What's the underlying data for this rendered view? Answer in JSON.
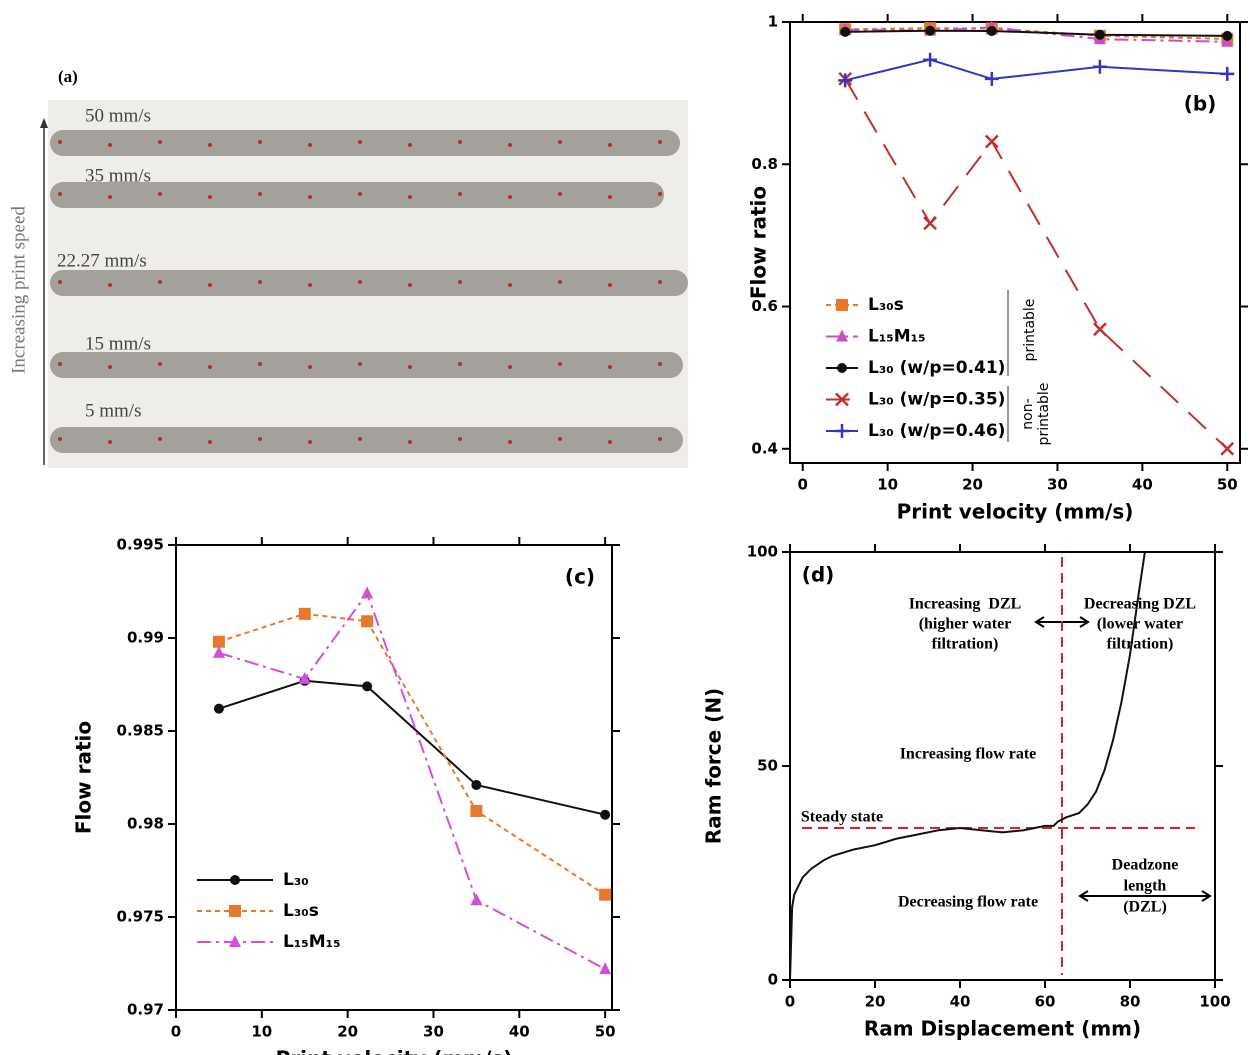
{
  "photo": {
    "panel_label": "(a)",
    "axis_label": "Increasing print speed",
    "speeds": [
      "50 mm/s",
      "35 mm/s",
      "22.27 mm/s",
      "15 mm/s",
      "5 mm/s"
    ]
  },
  "chart_data": [
    {
      "type": "line",
      "panel_label": "(b)",
      "xlabel": "Print velocity (mm/s)",
      "ylabel": "Flow ratio",
      "x": [
        5,
        15,
        22.27,
        35,
        50
      ],
      "xlim": [
        -1.5,
        51.5
      ],
      "xticks": [
        0,
        10,
        20,
        30,
        40,
        50
      ],
      "ylim": [
        0.38,
        1.0
      ],
      "yticks": [
        0.4,
        0.6,
        0.8,
        1
      ],
      "legend": "lower left",
      "series": [
        {
          "name": "L₃₀s",
          "color": "#e8792a",
          "linestyle": "dotted",
          "marker": "square",
          "values": [
            0.9898,
            0.9913,
            0.9909,
            0.9807,
            0.9762
          ]
        },
        {
          "name": "L₁₅M₁₅",
          "color": "#c84fc8",
          "linestyle": "dashdot",
          "marker": "triangle",
          "values": [
            0.9892,
            0.9878,
            0.9924,
            0.9759,
            0.9722
          ]
        },
        {
          "name": "L₃₀ (w/p=0.41)",
          "color": "#111111",
          "linestyle": "solid",
          "marker": "circle",
          "values": [
            0.9862,
            0.9877,
            0.9874,
            0.9821,
            0.9805
          ]
        },
        {
          "name": "L₃₀ (w/p=0.35)",
          "color": "#c03030",
          "linestyle": "longdash",
          "marker": "x",
          "values": [
            0.92,
            0.717,
            0.832,
            0.568,
            0.4
          ]
        },
        {
          "name": "L₃₀ (w/p=0.46)",
          "color": "#3535c0",
          "linestyle": "solid",
          "marker": "plus",
          "values": [
            0.918,
            0.947,
            0.92,
            0.937,
            0.927
          ]
        }
      ],
      "annotations": [
        {
          "lines": [
            "printable"
          ]
        },
        {
          "lines": [
            "non-",
            "printable"
          ]
        }
      ]
    },
    {
      "type": "line",
      "panel_label": "(c)",
      "xlabel": "Print velocity (mm/s)",
      "ylabel": "Flow ratio",
      "x": [
        5,
        15,
        22.27,
        35,
        50
      ],
      "xlim": [
        0,
        50.8
      ],
      "xticks": [
        0,
        10,
        20,
        30,
        40,
        50
      ],
      "ylim": [
        0.97,
        0.995
      ],
      "yticks": [
        0.97,
        0.975,
        0.98,
        0.985,
        0.99,
        0.995
      ],
      "legend": "lower left",
      "series": [
        {
          "name": "L₃₀",
          "color": "#111111",
          "linestyle": "solid",
          "marker": "circle",
          "values": [
            0.9862,
            0.9877,
            0.9874,
            0.9821,
            0.9805
          ]
        },
        {
          "name": "L₃₀s",
          "color": "#e8792a",
          "linestyle": "dotted",
          "marker": "square",
          "values": [
            0.9898,
            0.9913,
            0.9909,
            0.9807,
            0.9762
          ]
        },
        {
          "name": "L₁₅M₁₅",
          "color": "#d24fd8",
          "linestyle": "dashdot",
          "marker": "triangle",
          "values": [
            0.9892,
            0.9878,
            0.9924,
            0.9759,
            0.9722
          ]
        }
      ]
    },
    {
      "type": "line",
      "panel_label": "(d)",
      "xlabel": "Ram Displacement (mm)",
      "ylabel": "Ram force (N)",
      "x": [
        0,
        0.3,
        0.5,
        1,
        2,
        3,
        5,
        8,
        10,
        15,
        20,
        25,
        30,
        35,
        40,
        45,
        50,
        55,
        60,
        62,
        63,
        65,
        68,
        70,
        72,
        74,
        76,
        78,
        80,
        82,
        83.5
      ],
      "xlim": [
        0,
        100
      ],
      "xticks": [
        0,
        20,
        40,
        60,
        80,
        100
      ],
      "ylim": [
        0,
        100
      ],
      "yticks": [
        0,
        50,
        100
      ],
      "series": [
        {
          "color": "#111111",
          "linestyle": "solid",
          "marker": "none",
          "values": [
            0,
            10,
            17,
            20,
            22,
            24,
            26,
            28,
            29,
            30.5,
            31.5,
            33,
            34,
            35,
            35.5,
            35,
            34.5,
            35,
            36,
            36,
            37,
            38,
            39,
            41,
            44,
            49,
            56,
            65,
            76,
            90,
            100
          ]
        }
      ],
      "hlines": [
        35.5
      ],
      "vlines": [
        64
      ],
      "ref_color": "#e02020",
      "annotations": [
        {
          "lines": [
            "Increasing  DZL",
            "(higher water",
            "filtration)"
          ]
        },
        {
          "lines": [
            "Decreasing DZL",
            "(lower water",
            "filtration)"
          ]
        },
        {
          "lines": [
            "Increasing flow rate"
          ]
        },
        {
          "lines": [
            "Steady state"
          ]
        },
        {
          "lines": [
            "Decreasing flow rate"
          ]
        },
        {
          "lines": [
            "Deadzone",
            "length",
            "(DZL)"
          ]
        }
      ]
    }
  ]
}
